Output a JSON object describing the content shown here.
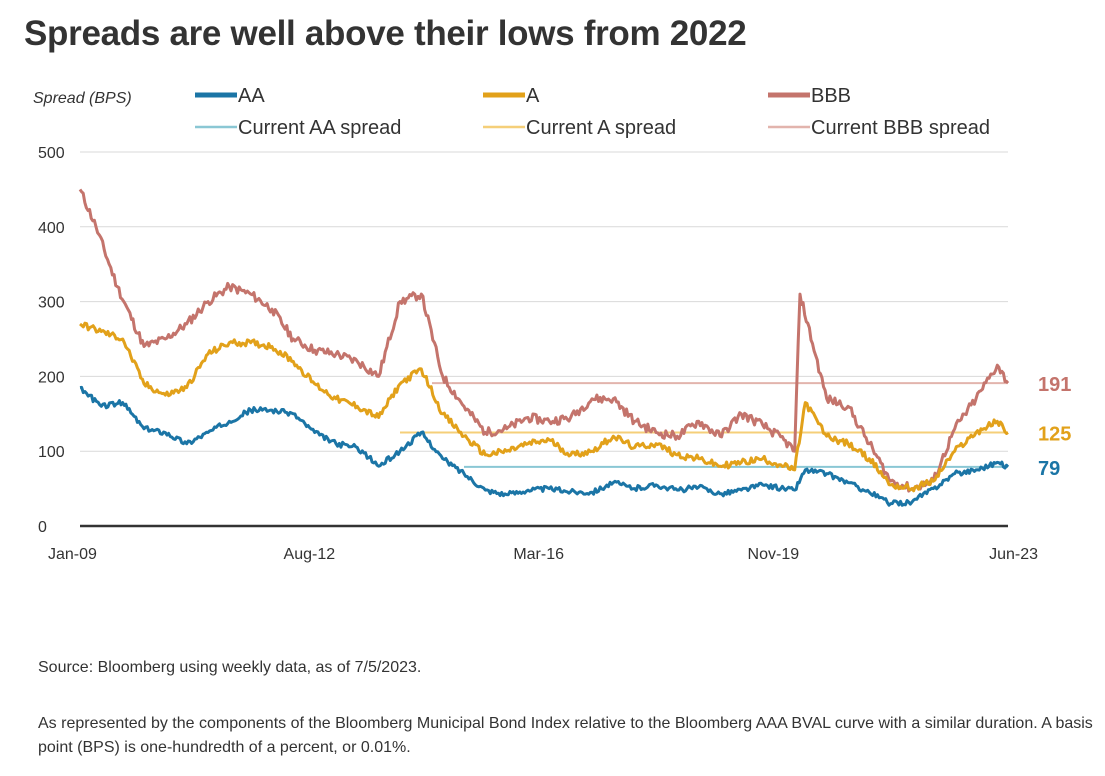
{
  "title": "Spreads are well above their lows from 2022",
  "source": "Source: Bloomberg using weekly data, as of 7/5/2023.",
  "description": "As represented by the components of the Bloomberg Municipal Bond Index relative to the Bloomberg AAA BVAL curve with a similar duration. A basis point (BPS) is one-hundredth of a percent, or 0.01%.",
  "colors": {
    "AA": "#1b75a6",
    "A": "#e2a11a",
    "BBB": "#c4746c",
    "AA_current": "#8ac7d4",
    "A_current": "#f5cf79",
    "BBB_current": "#e2b4ad",
    "axis": "#333333",
    "grid": "#d9d9d9"
  },
  "chart_data": {
    "type": "line",
    "ylabel": "Spread (BPS)",
    "ylim": [
      0,
      500
    ],
    "yticks": [
      0,
      100,
      200,
      300,
      400,
      500
    ],
    "xlim": [
      "2009-01",
      "2023-07"
    ],
    "xticks": [
      {
        "date": "2009-01",
        "label": "Jan-09"
      },
      {
        "date": "2012-08",
        "label": "Aug-12"
      },
      {
        "date": "2016-03",
        "label": "Mar-16"
      },
      {
        "date": "2019-11",
        "label": "Nov-19"
      },
      {
        "date": "2023-06",
        "label": "Jun-23"
      }
    ],
    "grid": true,
    "legend_position": "top",
    "series": [
      {
        "name": "AA",
        "key": "AA",
        "x": [
          "2009-01",
          "2009-05",
          "2009-09",
          "2010-01",
          "2010-05",
          "2010-09",
          "2011-01",
          "2011-05",
          "2011-09",
          "2012-01",
          "2012-05",
          "2012-09",
          "2013-01",
          "2013-05",
          "2013-09",
          "2014-01",
          "2014-05",
          "2014-09",
          "2015-01",
          "2015-05",
          "2015-09",
          "2016-01",
          "2016-05",
          "2016-09",
          "2017-01",
          "2017-05",
          "2017-09",
          "2018-01",
          "2018-05",
          "2018-09",
          "2019-01",
          "2019-05",
          "2019-09",
          "2020-01",
          "2020-03",
          "2020-05",
          "2020-09",
          "2021-01",
          "2021-05",
          "2021-09",
          "2022-01",
          "2022-05",
          "2022-09",
          "2023-01",
          "2023-05",
          "2023-07"
        ],
        "y": [
          185,
          160,
          165,
          130,
          125,
          110,
          125,
          140,
          155,
          155,
          150,
          125,
          110,
          105,
          80,
          100,
          125,
          90,
          70,
          48,
          42,
          48,
          50,
          46,
          45,
          58,
          50,
          55,
          48,
          52,
          43,
          48,
          55,
          50,
          48,
          75,
          70,
          58,
          45,
          30,
          32,
          50,
          70,
          75,
          85,
          79
        ]
      },
      {
        "name": "A",
        "key": "A",
        "x": [
          "2009-01",
          "2009-05",
          "2009-09",
          "2010-01",
          "2010-05",
          "2010-09",
          "2011-01",
          "2011-05",
          "2011-09",
          "2012-01",
          "2012-05",
          "2012-09",
          "2013-01",
          "2013-05",
          "2013-09",
          "2014-01",
          "2014-05",
          "2014-09",
          "2015-01",
          "2015-05",
          "2015-09",
          "2016-01",
          "2016-05",
          "2016-09",
          "2017-01",
          "2017-05",
          "2017-09",
          "2018-01",
          "2018-05",
          "2018-09",
          "2019-01",
          "2019-05",
          "2019-09",
          "2020-01",
          "2020-03",
          "2020-05",
          "2020-09",
          "2021-01",
          "2021-05",
          "2021-09",
          "2022-01",
          "2022-05",
          "2022-09",
          "2023-01",
          "2023-05",
          "2023-07"
        ],
        "y": [
          270,
          260,
          250,
          190,
          175,
          185,
          230,
          245,
          245,
          240,
          220,
          190,
          170,
          160,
          145,
          190,
          210,
          150,
          120,
          95,
          100,
          110,
          115,
          95,
          100,
          120,
          105,
          110,
          95,
          90,
          80,
          85,
          90,
          80,
          75,
          165,
          120,
          110,
          90,
          55,
          50,
          60,
          100,
          125,
          140,
          125
        ]
      },
      {
        "name": "BBB",
        "key": "BBB",
        "x": [
          "2009-01",
          "2009-04",
          "2009-08",
          "2010-01",
          "2010-05",
          "2010-09",
          "2011-01",
          "2011-05",
          "2011-09",
          "2012-01",
          "2012-05",
          "2012-09",
          "2013-01",
          "2013-05",
          "2013-09",
          "2014-01",
          "2014-05",
          "2014-09",
          "2015-01",
          "2015-05",
          "2015-09",
          "2016-01",
          "2016-05",
          "2016-09",
          "2017-01",
          "2017-05",
          "2017-09",
          "2018-01",
          "2018-05",
          "2018-09",
          "2019-01",
          "2019-05",
          "2019-09",
          "2020-01",
          "2020-03",
          "2020-04",
          "2020-09",
          "2021-01",
          "2021-05",
          "2021-09",
          "2022-01",
          "2022-05",
          "2022-09",
          "2023-01",
          "2023-05",
          "2023-07"
        ],
        "y": [
          450,
          400,
          320,
          240,
          250,
          270,
          300,
          320,
          310,
          290,
          250,
          235,
          230,
          220,
          200,
          300,
          310,
          200,
          160,
          125,
          130,
          145,
          140,
          145,
          170,
          170,
          140,
          125,
          120,
          140,
          120,
          150,
          135,
          115,
          100,
          310,
          170,
          160,
          110,
          60,
          50,
          60,
          130,
          170,
          215,
          191
        ]
      },
      {
        "name": "Current AA spread",
        "key": "AA_current",
        "constant": 79,
        "from": "2015-01",
        "label": "79"
      },
      {
        "name": "Current A spread",
        "key": "A_current",
        "constant": 125,
        "from": "2014-01",
        "label": "125"
      },
      {
        "name": "Current BBB spread",
        "key": "BBB_current",
        "constant": 191,
        "from": "2014-07",
        "label": "191"
      }
    ]
  }
}
